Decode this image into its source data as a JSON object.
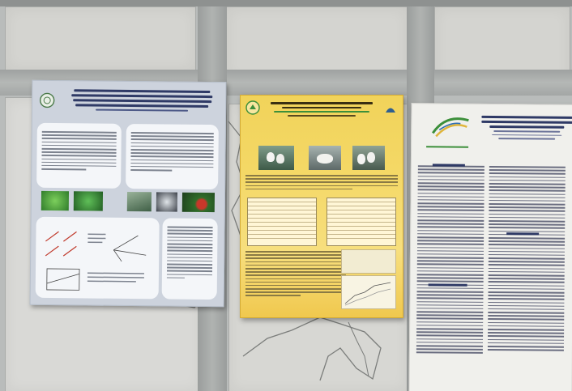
{
  "scene": {
    "description_hidden": "",
    "colors": {
      "wall_panel": "#d4d4d0",
      "frame": "#9ea1a0",
      "poster_left_bg": "#cdd3dd",
      "poster_center_bg": "#f4d866",
      "poster_right_bg": "#f0f0ec",
      "accent_blue": "#2f3a66",
      "accent_green": "#3c8f3a"
    }
  },
  "posters": [
    {
      "id": "left",
      "icons": [
        "seal-logo-icon"
      ]
    },
    {
      "id": "center",
      "icons": [
        "university-logo-icon",
        "goose-photo-icon"
      ]
    },
    {
      "id": "right",
      "icons": [
        "swoosh-logo-icon"
      ]
    }
  ]
}
